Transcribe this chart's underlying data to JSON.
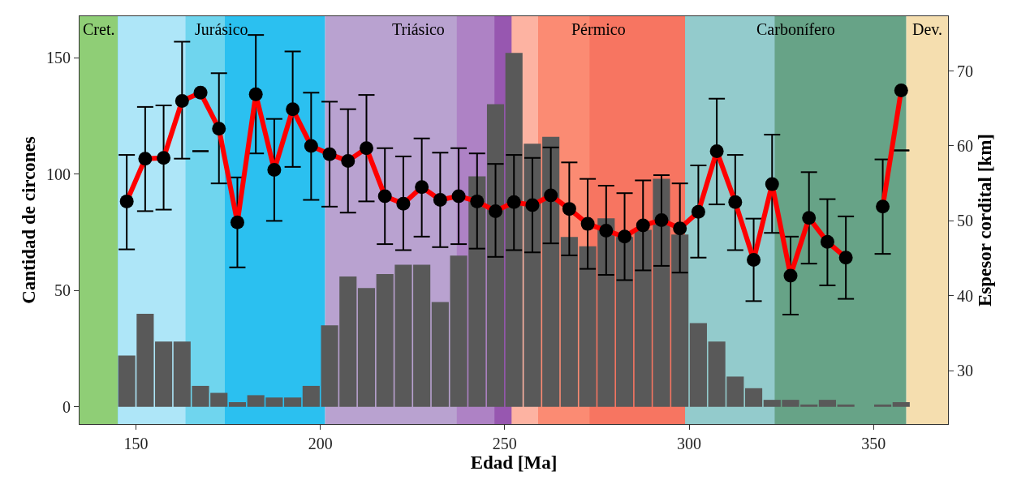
{
  "chart_data": {
    "type": "bar",
    "xlabel": "Edad [Ma]",
    "ylabel": "Cantidad de circones",
    "y2label": "Espesor cordital [km]",
    "x": [
      147.5,
      152.5,
      157.5,
      162.5,
      167.5,
      172.5,
      177.5,
      182.5,
      187.5,
      192.5,
      197.5,
      202.5,
      207.5,
      212.5,
      217.5,
      222.5,
      227.5,
      232.5,
      237.5,
      242.5,
      247.5,
      252.5,
      257.5,
      262.5,
      267.5,
      272.5,
      277.5,
      282.5,
      287.5,
      292.5,
      297.5,
      302.5,
      307.5,
      312.5,
      317.5,
      322.5,
      327.5,
      332.5,
      337.5,
      342.5,
      347.5,
      352.5,
      357.5
    ],
    "xlim": [
      134.7,
      370.2
    ],
    "xticks": [
      150,
      200,
      250,
      300,
      350
    ],
    "ylim": [
      -7.4,
      167.8
    ],
    "yticks": [
      0,
      50,
      100,
      150
    ],
    "y2lim": [
      22.9,
      77.3
    ],
    "y2ticks": [
      30,
      40,
      50,
      60,
      70
    ],
    "grid": false,
    "marker": "circle",
    "line_style": "solid",
    "series": [
      {
        "color": "#595959",
        "values": [
          22,
          40,
          28,
          28,
          9,
          6,
          2,
          5,
          4,
          4,
          9,
          35,
          56,
          51,
          57,
          61,
          61,
          45,
          65,
          99,
          130,
          152,
          113,
          116,
          73,
          69,
          81,
          73,
          76,
          98,
          74,
          36,
          28,
          13,
          8,
          3,
          3,
          1,
          3,
          1,
          0,
          1,
          2
        ]
      },
      {
        "type": "line",
        "axis": "y2",
        "color": "#ff0000",
        "values": [
          52.6,
          58.3,
          58.4,
          66.0,
          67.1,
          62.3,
          49.8,
          66.9,
          56.8,
          64.9,
          60.0,
          58.9,
          58.0,
          59.7,
          53.3,
          52.3,
          54.5,
          52.8,
          53.3,
          52.6,
          51.3,
          52.5,
          52.1,
          53.4,
          51.6,
          49.6,
          48.7,
          47.9,
          49.4,
          50.1,
          49.0,
          51.2,
          59.3,
          52.5,
          44.8,
          54.9,
          42.7,
          50.4,
          47.2,
          45.1,
          null,
          51.9,
          67.4
        ],
        "errors": [
          [
            46.2,
            58.8
          ],
          [
            51.3,
            65.2
          ],
          [
            51.5,
            65.4
          ],
          [
            58.3,
            73.9
          ],
          [
            59.3,
            59.3
          ],
          [
            55.0,
            69.7
          ],
          [
            43.8,
            55.8
          ],
          [
            59.0,
            74.8
          ],
          [
            50.0,
            63.6
          ],
          [
            57.2,
            72.6
          ],
          [
            52.8,
            67.1
          ],
          [
            51.9,
            65.9
          ],
          [
            51.1,
            64.9
          ],
          [
            52.6,
            66.8
          ],
          [
            46.9,
            59.7
          ],
          [
            46.1,
            58.6
          ],
          [
            47.9,
            61.0
          ],
          [
            46.5,
            59.1
          ],
          [
            46.9,
            59.7
          ],
          [
            46.3,
            59.0
          ],
          [
            45.2,
            57.6
          ],
          [
            46.1,
            58.8
          ],
          [
            45.8,
            58.4
          ],
          [
            47.0,
            59.8
          ],
          [
            45.4,
            57.8
          ],
          [
            43.6,
            55.6
          ],
          [
            42.8,
            54.7
          ],
          [
            42.1,
            53.7
          ],
          [
            43.4,
            55.4
          ],
          [
            44.0,
            56.1
          ],
          [
            43.1,
            55.0
          ],
          [
            45.1,
            57.4
          ],
          [
            52.2,
            66.3
          ],
          [
            46.1,
            58.8
          ],
          [
            39.3,
            50.3
          ],
          [
            48.4,
            61.5
          ],
          [
            37.5,
            47.9
          ],
          [
            44.3,
            56.5
          ],
          [
            41.4,
            52.9
          ],
          [
            39.6,
            50.6
          ],
          null,
          [
            45.6,
            58.2
          ],
          [
            59.4,
            59.4
          ]
        ]
      }
    ],
    "bands": [
      {
        "axis": "x",
        "from": 134.7,
        "to": 145.1,
        "color": "#8fce76",
        "label": "Cret."
      },
      {
        "axis": "x",
        "from": 145.1,
        "to": 201.3,
        "color": "#2bc0f0",
        "label": "Jurásico"
      },
      {
        "axis": "x",
        "from": 201.3,
        "to": 251.9,
        "color": "#b9a2d0",
        "label": "Triásico"
      },
      {
        "axis": "x",
        "from": 251.9,
        "to": 298.9,
        "color": "#f77561",
        "label": "Pérmico"
      },
      {
        "axis": "x",
        "from": 298.9,
        "to": 358.9,
        "color": "#67a387",
        "label": "Carbonífero"
      },
      {
        "axis": "x",
        "from": 358.9,
        "to": 370.2,
        "color": "#f5deaf",
        "label": "Dev."
      },
      {
        "axis": "x",
        "from": 145.1,
        "to": 163.5,
        "color": "#aee6f8"
      },
      {
        "axis": "x",
        "from": 163.5,
        "to": 174.1,
        "color": "#6fd5ee"
      },
      {
        "axis": "x",
        "from": 237.0,
        "to": 247.2,
        "color": "#ae82c5"
      },
      {
        "axis": "x",
        "from": 247.2,
        "to": 251.9,
        "color": "#9757b0"
      },
      {
        "axis": "x",
        "from": 251.9,
        "to": 259.1,
        "color": "#fdb3a2"
      },
      {
        "axis": "x",
        "from": 259.1,
        "to": 273.0,
        "color": "#fb8b73"
      },
      {
        "axis": "x",
        "from": 298.9,
        "to": 323.2,
        "color": "#93cbcc"
      }
    ]
  }
}
